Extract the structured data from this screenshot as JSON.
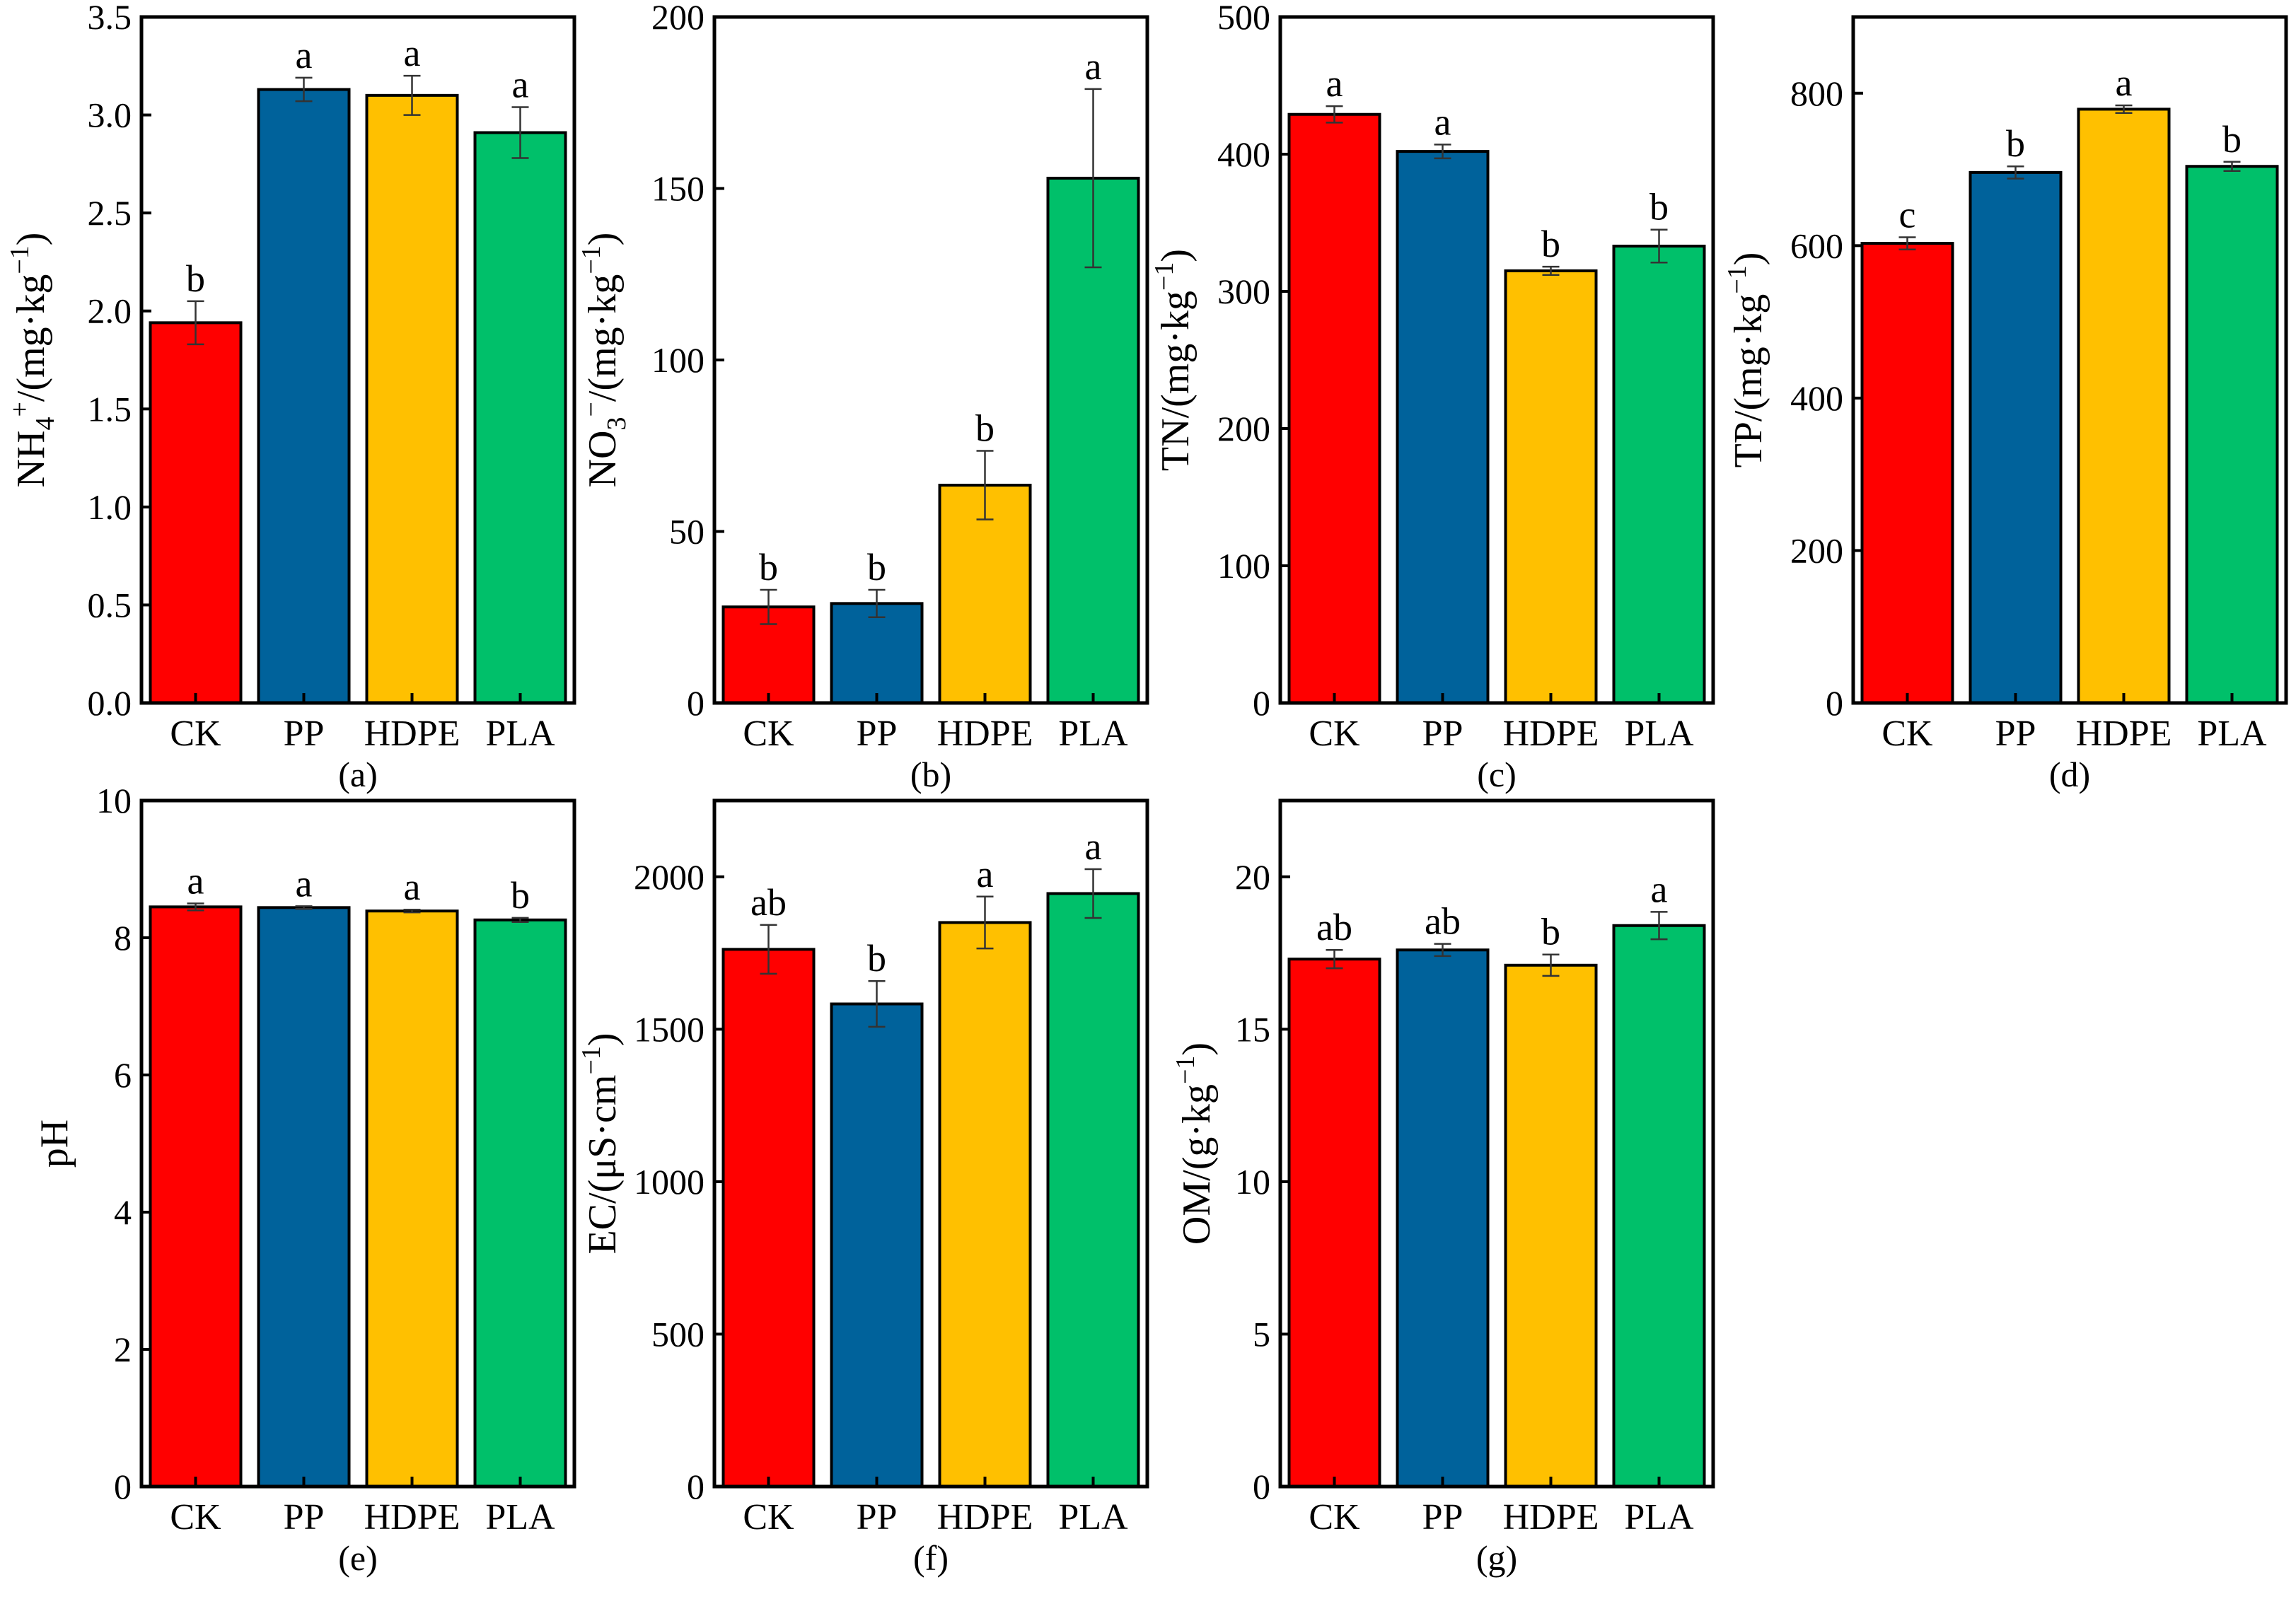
{
  "colors": {
    "CK": "#ff0000",
    "PP": "#00629b",
    "HDPE": "#ffc000",
    "PLA": "#00c06a"
  },
  "chart_data": [
    {
      "type": "bar",
      "panel_label": "(a)",
      "ylabel_main": "NH",
      "ylabel_sub": "4",
      "ylabel_sup": "+",
      "ylabel_after": "/(mg·kg",
      "ylabel_unit_sup": "−1",
      "ylabel_close": ")",
      "categories": [
        "CK",
        "PP",
        "HDPE",
        "PLA"
      ],
      "values": [
        1.94,
        3.13,
        3.1,
        2.91
      ],
      "errors": [
        0.11,
        0.06,
        0.1,
        0.13
      ],
      "letters": [
        "b",
        "a",
        "a",
        "a"
      ],
      "ylim": [
        0,
        3.5
      ],
      "yticks": [
        0,
        0.5,
        1.0,
        1.5,
        2.0,
        2.5,
        3.0,
        3.5
      ],
      "ytick_labels": [
        "0.0",
        "0.5",
        "1.0",
        "1.5",
        "2.0",
        "2.5",
        "3.0",
        "3.5"
      ]
    },
    {
      "type": "bar",
      "panel_label": "(b)",
      "ylabel_main": "NO",
      "ylabel_sub": "3",
      "ylabel_sup": "−",
      "ylabel_after": "/(mg·kg",
      "ylabel_unit_sup": "−1",
      "ylabel_close": ")",
      "categories": [
        "CK",
        "PP",
        "HDPE",
        "PLA"
      ],
      "values": [
        28,
        29,
        63.5,
        153
      ],
      "errors": [
        5,
        4,
        10,
        26
      ],
      "letters": [
        "b",
        "b",
        "b",
        "a"
      ],
      "ylim": [
        0,
        200
      ],
      "yticks": [
        0,
        50,
        100,
        150,
        200
      ],
      "ytick_labels": [
        "0",
        "50",
        "100",
        "150",
        "200"
      ]
    },
    {
      "type": "bar",
      "panel_label": "(c)",
      "ylabel_main": "TN/(mg·kg",
      "ylabel_sub": "",
      "ylabel_sup": "",
      "ylabel_after": "",
      "ylabel_unit_sup": "−1",
      "ylabel_close": ")",
      "categories": [
        "CK",
        "PP",
        "HDPE",
        "PLA"
      ],
      "values": [
        429,
        402,
        315,
        333
      ],
      "errors": [
        6,
        5,
        3,
        12
      ],
      "letters": [
        "a",
        "a",
        "b",
        "b"
      ],
      "ylim": [
        0,
        500
      ],
      "yticks": [
        0,
        100,
        200,
        300,
        400,
        500
      ],
      "ytick_labels": [
        "0",
        "100",
        "200",
        "300",
        "400",
        "500"
      ]
    },
    {
      "type": "bar",
      "panel_label": "(d)",
      "ylabel_main": "TP/(mg·kg",
      "ylabel_sub": "",
      "ylabel_sup": "",
      "ylabel_after": "",
      "ylabel_unit_sup": "−1",
      "ylabel_close": ")",
      "categories": [
        "CK",
        "PP",
        "HDPE",
        "PLA"
      ],
      "values": [
        603,
        696,
        779,
        704
      ],
      "errors": [
        8,
        8,
        5,
        6
      ],
      "letters": [
        "c",
        "b",
        "a",
        "b"
      ],
      "ylim": [
        0,
        900
      ],
      "yticks": [
        0,
        200,
        400,
        600,
        800
      ],
      "ytick_labels": [
        "0",
        "200",
        "400",
        "600",
        "800"
      ]
    },
    {
      "type": "bar",
      "panel_label": "(e)",
      "ylabel_main": "pH",
      "ylabel_sub": "",
      "ylabel_sup": "",
      "ylabel_after": "",
      "ylabel_unit_sup": "",
      "ylabel_close": "",
      "categories": [
        "CK",
        "PP",
        "HDPE",
        "PLA"
      ],
      "values": [
        8.45,
        8.44,
        8.39,
        8.26
      ],
      "errors": [
        0.05,
        0.02,
        0.02,
        0.03
      ],
      "letters": [
        "a",
        "a",
        "a",
        "b"
      ],
      "ylim": [
        0,
        10
      ],
      "yticks": [
        0,
        2,
        4,
        6,
        8,
        10
      ],
      "ytick_labels": [
        "0",
        "2",
        "4",
        "6",
        "8",
        "10"
      ]
    },
    {
      "type": "bar",
      "panel_label": "(f)",
      "ylabel_main": "EC/(μS·cm",
      "ylabel_sub": "",
      "ylabel_sup": "",
      "ylabel_after": "",
      "ylabel_unit_sup": "−1",
      "ylabel_close": ")",
      "categories": [
        "CK",
        "PP",
        "HDPE",
        "PLA"
      ],
      "values": [
        1762,
        1583,
        1850,
        1945
      ],
      "errors": [
        80,
        75,
        85,
        80
      ],
      "letters": [
        "ab",
        "b",
        "a",
        "a"
      ],
      "ylim": [
        0,
        2250
      ],
      "yticks": [
        0,
        500,
        1000,
        1500,
        2000
      ],
      "ytick_labels": [
        "0",
        "500",
        "1000",
        "1500",
        "2000"
      ]
    },
    {
      "type": "bar",
      "panel_label": "(g)",
      "ylabel_main": "OM/(g·kg",
      "ylabel_sub": "",
      "ylabel_sup": "",
      "ylabel_after": "",
      "ylabel_unit_sup": "−1",
      "ylabel_close": ")",
      "categories": [
        "CK",
        "PP",
        "HDPE",
        "PLA"
      ],
      "values": [
        17.3,
        17.6,
        17.1,
        18.4
      ],
      "errors": [
        0.3,
        0.2,
        0.35,
        0.45
      ],
      "letters": [
        "ab",
        "ab",
        "b",
        "a"
      ],
      "ylim": [
        0,
        22.5
      ],
      "yticks": [
        0,
        5,
        10,
        15,
        20
      ],
      "ytick_labels": [
        "0",
        "5",
        "10",
        "15",
        "20"
      ]
    }
  ]
}
